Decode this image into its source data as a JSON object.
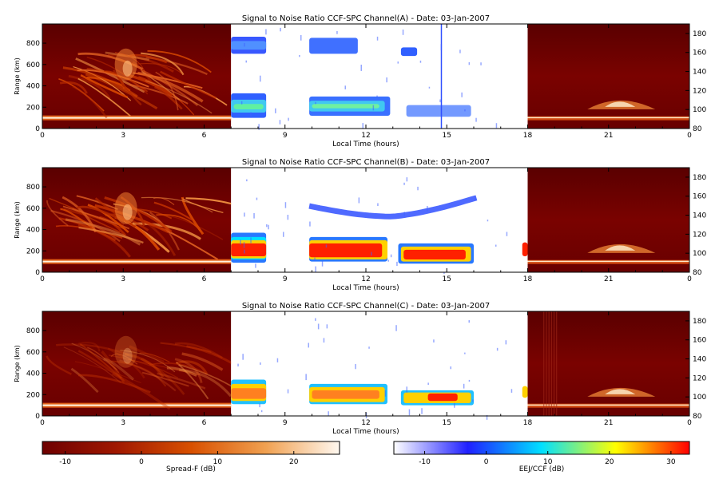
{
  "chart_data": [
    {
      "type": "heatmap",
      "title": "Signal to Noise Ratio CCF-SPC Channel(A) - Date: 03-Jan-2007",
      "xlabel": "Local Time (hours)",
      "ylabel": "Range (km)",
      "xlim": [
        0,
        24
      ],
      "ylim": [
        0,
        980
      ],
      "y2lim": [
        80,
        190
      ],
      "x_ticks": [
        "0",
        "3",
        "6",
        "9",
        "12",
        "15",
        "18",
        "21",
        "0"
      ],
      "y_ticks": [
        0,
        200,
        400,
        600,
        800
      ],
      "y2_ticks": [
        80,
        100,
        120,
        140,
        160,
        180
      ],
      "segments": [
        {
          "x": [
            0,
            7
          ],
          "scale": "Spread-F (dB)"
        },
        {
          "x": [
            7,
            18
          ],
          "scale": "EEJ/CCF (dB)"
        },
        {
          "x": [
            18,
            24
          ],
          "scale": "Spread-F (dB)"
        }
      ]
    },
    {
      "type": "heatmap",
      "title": "Signal to Noise Ratio CCF-SPC Channel(B) - Date: 03-Jan-2007",
      "xlabel": "Local Time (hours)",
      "ylabel": "Range (km)",
      "xlim": [
        0,
        24
      ],
      "ylim": [
        0,
        980
      ],
      "y2lim": [
        80,
        190
      ],
      "x_ticks": [
        "0",
        "3",
        "6",
        "9",
        "12",
        "15",
        "18",
        "21",
        "0"
      ],
      "y_ticks": [
        0,
        200,
        400,
        600,
        800
      ],
      "y2_ticks": [
        80,
        100,
        120,
        140,
        160,
        180
      ],
      "segments": [
        {
          "x": [
            0,
            7
          ],
          "scale": "Spread-F (dB)"
        },
        {
          "x": [
            7,
            18
          ],
          "scale": "EEJ/CCF (dB)"
        },
        {
          "x": [
            18,
            24
          ],
          "scale": "Spread-F (dB)"
        }
      ]
    },
    {
      "type": "heatmap",
      "title": "Signal to Noise Ratio CCF-SPC Channel(C) - Date: 03-Jan-2007",
      "xlabel": "Local Time (hours)",
      "ylabel": "Range (km)",
      "xlim": [
        0,
        24
      ],
      "ylim": [
        0,
        980
      ],
      "y2lim": [
        80,
        190
      ],
      "x_ticks": [
        "0",
        "3",
        "6",
        "9",
        "12",
        "15",
        "18",
        "21",
        "0"
      ],
      "y_ticks": [
        0,
        200,
        400,
        600,
        800
      ],
      "y2_ticks": [
        80,
        100,
        120,
        140,
        160,
        180
      ],
      "segments": [
        {
          "x": [
            0,
            7
          ],
          "scale": "Spread-F (dB)"
        },
        {
          "x": [
            7,
            18
          ],
          "scale": "EEJ/CCF (dB)"
        },
        {
          "x": [
            18,
            24
          ],
          "scale": "Spread-F (dB)"
        }
      ]
    }
  ],
  "colorbars": [
    {
      "label": "Spread-F (dB)",
      "range": [
        -13,
        26
      ],
      "ticks": [
        -10,
        0,
        10,
        20
      ],
      "colors": [
        "#6e0000",
        "#a01800",
        "#d85000",
        "#f0a050",
        "#fff8f0"
      ]
    },
    {
      "label": "EEJ/CCF (dB)",
      "range": [
        -15,
        33
      ],
      "ticks": [
        -10,
        0,
        10,
        20,
        30
      ],
      "colors": [
        "#ffffff",
        "#2020ff",
        "#00e0ff",
        "#ffff00",
        "#ff0000"
      ]
    }
  ]
}
